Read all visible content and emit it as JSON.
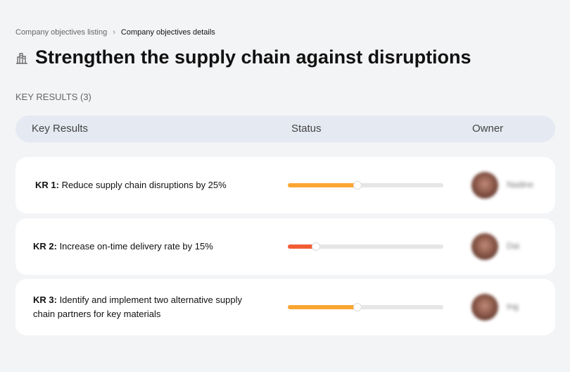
{
  "breadcrumb": {
    "parent": "Company objectives listing",
    "separator": "›",
    "current": "Company objectives details"
  },
  "header": {
    "icon": "buildings-icon",
    "title": "Strengthen the supply chain against disruptions"
  },
  "section": {
    "label": "KEY RESULTS (3)"
  },
  "table": {
    "columns": [
      "Key Results",
      "Status",
      "Owner"
    ],
    "rows": [
      {
        "id": "KR 1:",
        "text": " Reduce supply chain disruptions by 25%",
        "progress": 45,
        "color": "#fba632",
        "owner": "Nadine"
      },
      {
        "id": "KR 2:",
        "text": " Increase on-time delivery rate by 15%",
        "progress": 18,
        "color": "#f25c35",
        "owner": "Dai"
      },
      {
        "id": "KR 3:",
        "text": " Identify and implement two alternative supply chain partners for key materials",
        "progress": 45,
        "color": "#fba632",
        "owner": "Ing"
      }
    ]
  }
}
